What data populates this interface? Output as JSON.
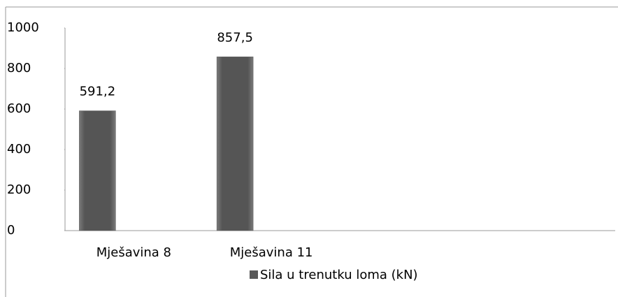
{
  "chart_data": {
    "type": "bar",
    "categories": [
      "Mješavina 8",
      "Mješavina 11",
      null,
      null
    ],
    "series": [
      {
        "name": "Sila u trenutku loma (kN)",
        "color": "#595959",
        "values": [
          591.2,
          857.5,
          null,
          null
        ],
        "value_labels": [
          "591,2",
          "857,5",
          null,
          null
        ]
      }
    ],
    "ylim": [
      0,
      1000
    ],
    "yticks": [
      0,
      200,
      400,
      600,
      800,
      1000
    ],
    "grid": false,
    "legend": "bottom"
  }
}
